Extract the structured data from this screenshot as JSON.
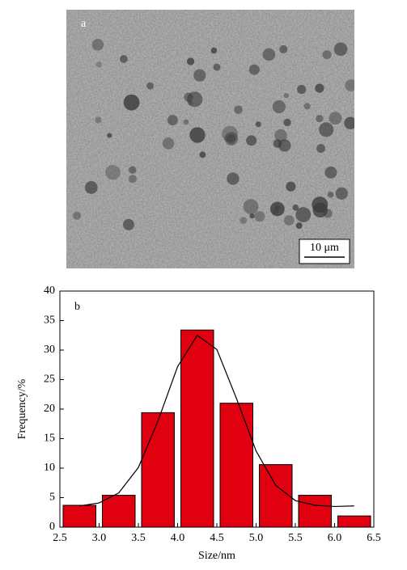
{
  "image": {
    "label": "a",
    "scale_bar": "10 μm"
  },
  "chart_data": {
    "type": "histogram",
    "label": "b",
    "bins": [
      2.5,
      3,
      3.5,
      4,
      4.5,
      5,
      5.5,
      6,
      6.5
    ],
    "values": [
      3.7,
      5.4,
      19.4,
      33.4,
      21.0,
      10.6,
      5.4,
      1.9
    ],
    "color": "#e00010",
    "fit": {
      "x": [
        2.75,
        3,
        3.25,
        3.5,
        3.75,
        4,
        4.25,
        4.5,
        4.75,
        5,
        5.25,
        5.5,
        5.75,
        6,
        6.25
      ],
      "values": [
        3.6,
        4.1,
        5.8,
        10.1,
        18.0,
        27.2,
        32.5,
        30.1,
        21.8,
        12.9,
        7.1,
        4.5,
        3.7,
        3.5,
        3.6
      ]
    },
    "xlim": [
      2.5,
      6.5
    ],
    "ylim": [
      0,
      40
    ],
    "xticks": [
      2.5,
      {
        "value": 3,
        "label": "3.0"
      },
      3.5,
      {
        "value": 4,
        "label": "4.0"
      },
      4.5,
      {
        "value": 5,
        "label": "5.0"
      },
      5.5,
      {
        "value": 6,
        "label": "6.0"
      },
      6.5
    ],
    "yticks": [
      0,
      5,
      10,
      15,
      20,
      25,
      30,
      35,
      40
    ],
    "xlabel": "Size/nm",
    "ylabel": "Frequency/%"
  }
}
